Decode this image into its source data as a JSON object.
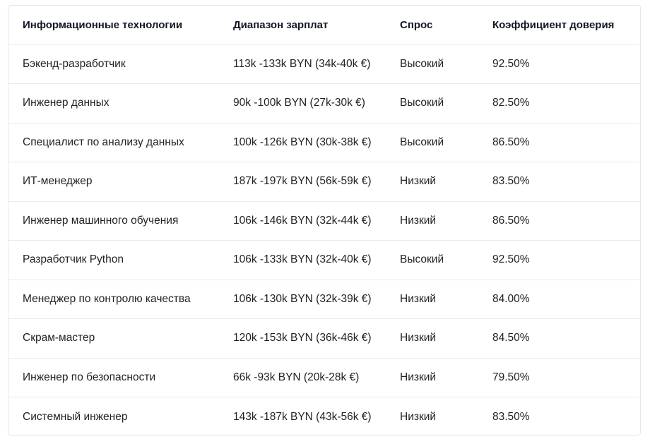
{
  "table": {
    "headers": [
      "Информационные технологии",
      "Диапазон зарплат",
      "Спрос",
      "Коэффициент доверия"
    ],
    "rows": [
      [
        "Бэкенд-разработчик",
        "113k -133k BYN (34k-40k €)",
        "Высокий",
        "92.50%"
      ],
      [
        "Инженер данных",
        "90k -100k BYN (27k-30k €)",
        "Высокий",
        "82.50%"
      ],
      [
        "Специалист по анализу данных",
        "100k -126k BYN (30k-38k €)",
        "Высокий",
        "86.50%"
      ],
      [
        "ИТ-менеджер",
        "187k -197k BYN (56k-59k €)",
        "Низкий",
        "83.50%"
      ],
      [
        "Инженер машинного обучения",
        "106k -146k BYN (32k-44k €)",
        "Низкий",
        "86.50%"
      ],
      [
        "Разработчик Python",
        "106k -133k BYN (32k-40k €)",
        "Высокий",
        "92.50%"
      ],
      [
        "Менеджер по контролю качества",
        "106k -130k BYN (32k-39k €)",
        "Низкий",
        "84.00%"
      ],
      [
        "Скрам-мастер",
        "120k -153k BYN (36k-46k €)",
        "Низкий",
        "84.50%"
      ],
      [
        "Инженер по безопасности",
        "66k -93k BYN (20k-28k €)",
        "Низкий",
        "79.50%"
      ],
      [
        "Системный инженер",
        "143k -187k BYN (43k-56k €)",
        "Низкий",
        "83.50%"
      ]
    ]
  }
}
